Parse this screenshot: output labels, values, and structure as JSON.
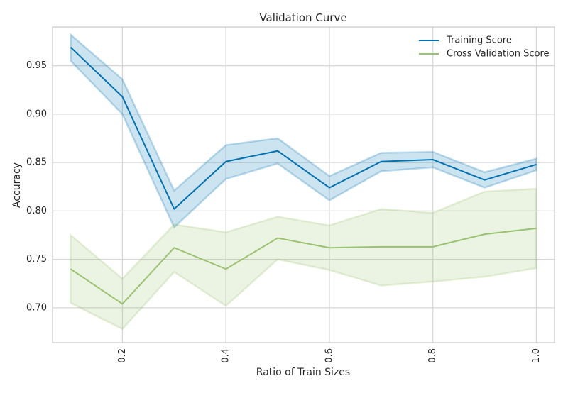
{
  "chart_data": {
    "type": "line",
    "title": "Validation Curve",
    "xlabel": "Ratio of Train Sizes",
    "ylabel": "Accuracy",
    "xlim": [
      0.065,
      1.035
    ],
    "ylim": [
      0.664,
      0.99
    ],
    "x_ticks": [
      0.2,
      0.4,
      0.6,
      0.8,
      1.0
    ],
    "x_tick_labels": [
      "0.2",
      "0.4",
      "0.6",
      "0.8",
      "1.0"
    ],
    "y_ticks": [
      0.7,
      0.75,
      0.8,
      0.85,
      0.9,
      0.95
    ],
    "y_tick_labels": [
      "0.70",
      "0.75",
      "0.80",
      "0.85",
      "0.90",
      "0.95"
    ],
    "x_tick_rotation": "vertical",
    "grid": true,
    "legend_position": "top-right",
    "x": [
      0.1,
      0.2,
      0.3,
      0.4,
      0.5,
      0.6,
      0.7,
      0.8,
      0.9,
      1.0
    ],
    "series": [
      {
        "name": "Training Score",
        "color": "#0072b2",
        "band_color": "#0072b2",
        "values": [
          0.969,
          0.918,
          0.802,
          0.851,
          0.862,
          0.824,
          0.851,
          0.853,
          0.832,
          0.848
        ],
        "upper": [
          0.982,
          0.936,
          0.821,
          0.868,
          0.875,
          0.836,
          0.86,
          0.861,
          0.84,
          0.854
        ],
        "lower": [
          0.955,
          0.9,
          0.783,
          0.833,
          0.849,
          0.811,
          0.841,
          0.845,
          0.824,
          0.842
        ]
      },
      {
        "name": "Cross Validation Score",
        "color": "#9ac36f",
        "band_color": "#9ac36f",
        "values": [
          0.74,
          0.704,
          0.762,
          0.74,
          0.772,
          0.762,
          0.763,
          0.763,
          0.776,
          0.782
        ],
        "upper": [
          0.775,
          0.73,
          0.786,
          0.778,
          0.794,
          0.785,
          0.802,
          0.798,
          0.82,
          0.823
        ],
        "lower": [
          0.705,
          0.678,
          0.737,
          0.702,
          0.75,
          0.739,
          0.723,
          0.727,
          0.732,
          0.741
        ]
      }
    ]
  }
}
